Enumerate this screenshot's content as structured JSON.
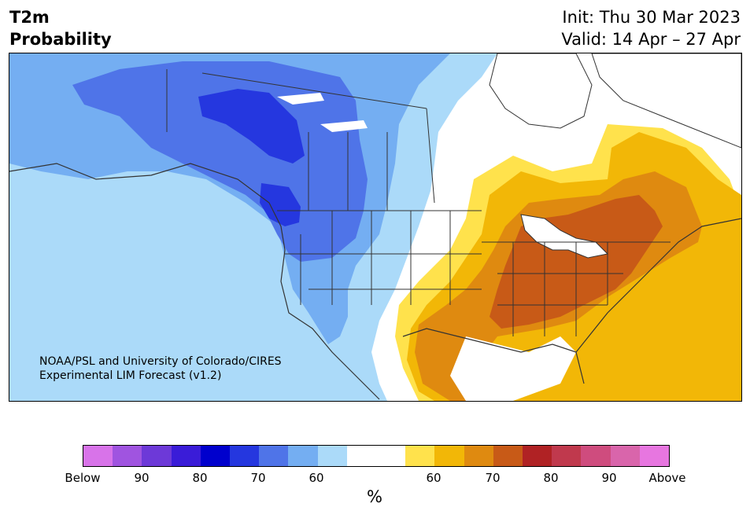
{
  "header": {
    "title_line1": "T2m",
    "title_line2": "Probability",
    "init": "Init: Thu 30 Mar 2023",
    "valid": "Valid: 14 Apr – 27 Apr"
  },
  "credit": {
    "line1": "NOAA/PSL and University of Colorado/CIRES",
    "line2": "Experimental LIM Forecast (v1.2)"
  },
  "colorbar": {
    "colors": [
      "#d873e9",
      "#a054e0",
      "#6d39d8",
      "#3a1cd8",
      "#0000cd",
      "#2537df",
      "#4f74e8",
      "#74aef2",
      "#abdaf9",
      "#ffffff",
      "#ffffff",
      "#ffe24c",
      "#f2b707",
      "#df8a10",
      "#c85a17",
      "#b02224",
      "#c0394d",
      "#cf4c7e",
      "#d965ab",
      "#e776e0"
    ],
    "tick_labels": [
      "Below",
      "90",
      "80",
      "70",
      "60",
      "60",
      "70",
      "80",
      "90",
      "Above"
    ],
    "unit": "%"
  },
  "map": {
    "colors": {
      "blue_1": "#74aef2",
      "blue_2": "#4f74e8",
      "blue_3": "#2537df",
      "blue_light": "#abdaf9",
      "yellow": "#ffe24c",
      "gold": "#f2b707",
      "orange": "#df8a10",
      "red_orange": "#c85a17"
    }
  }
}
